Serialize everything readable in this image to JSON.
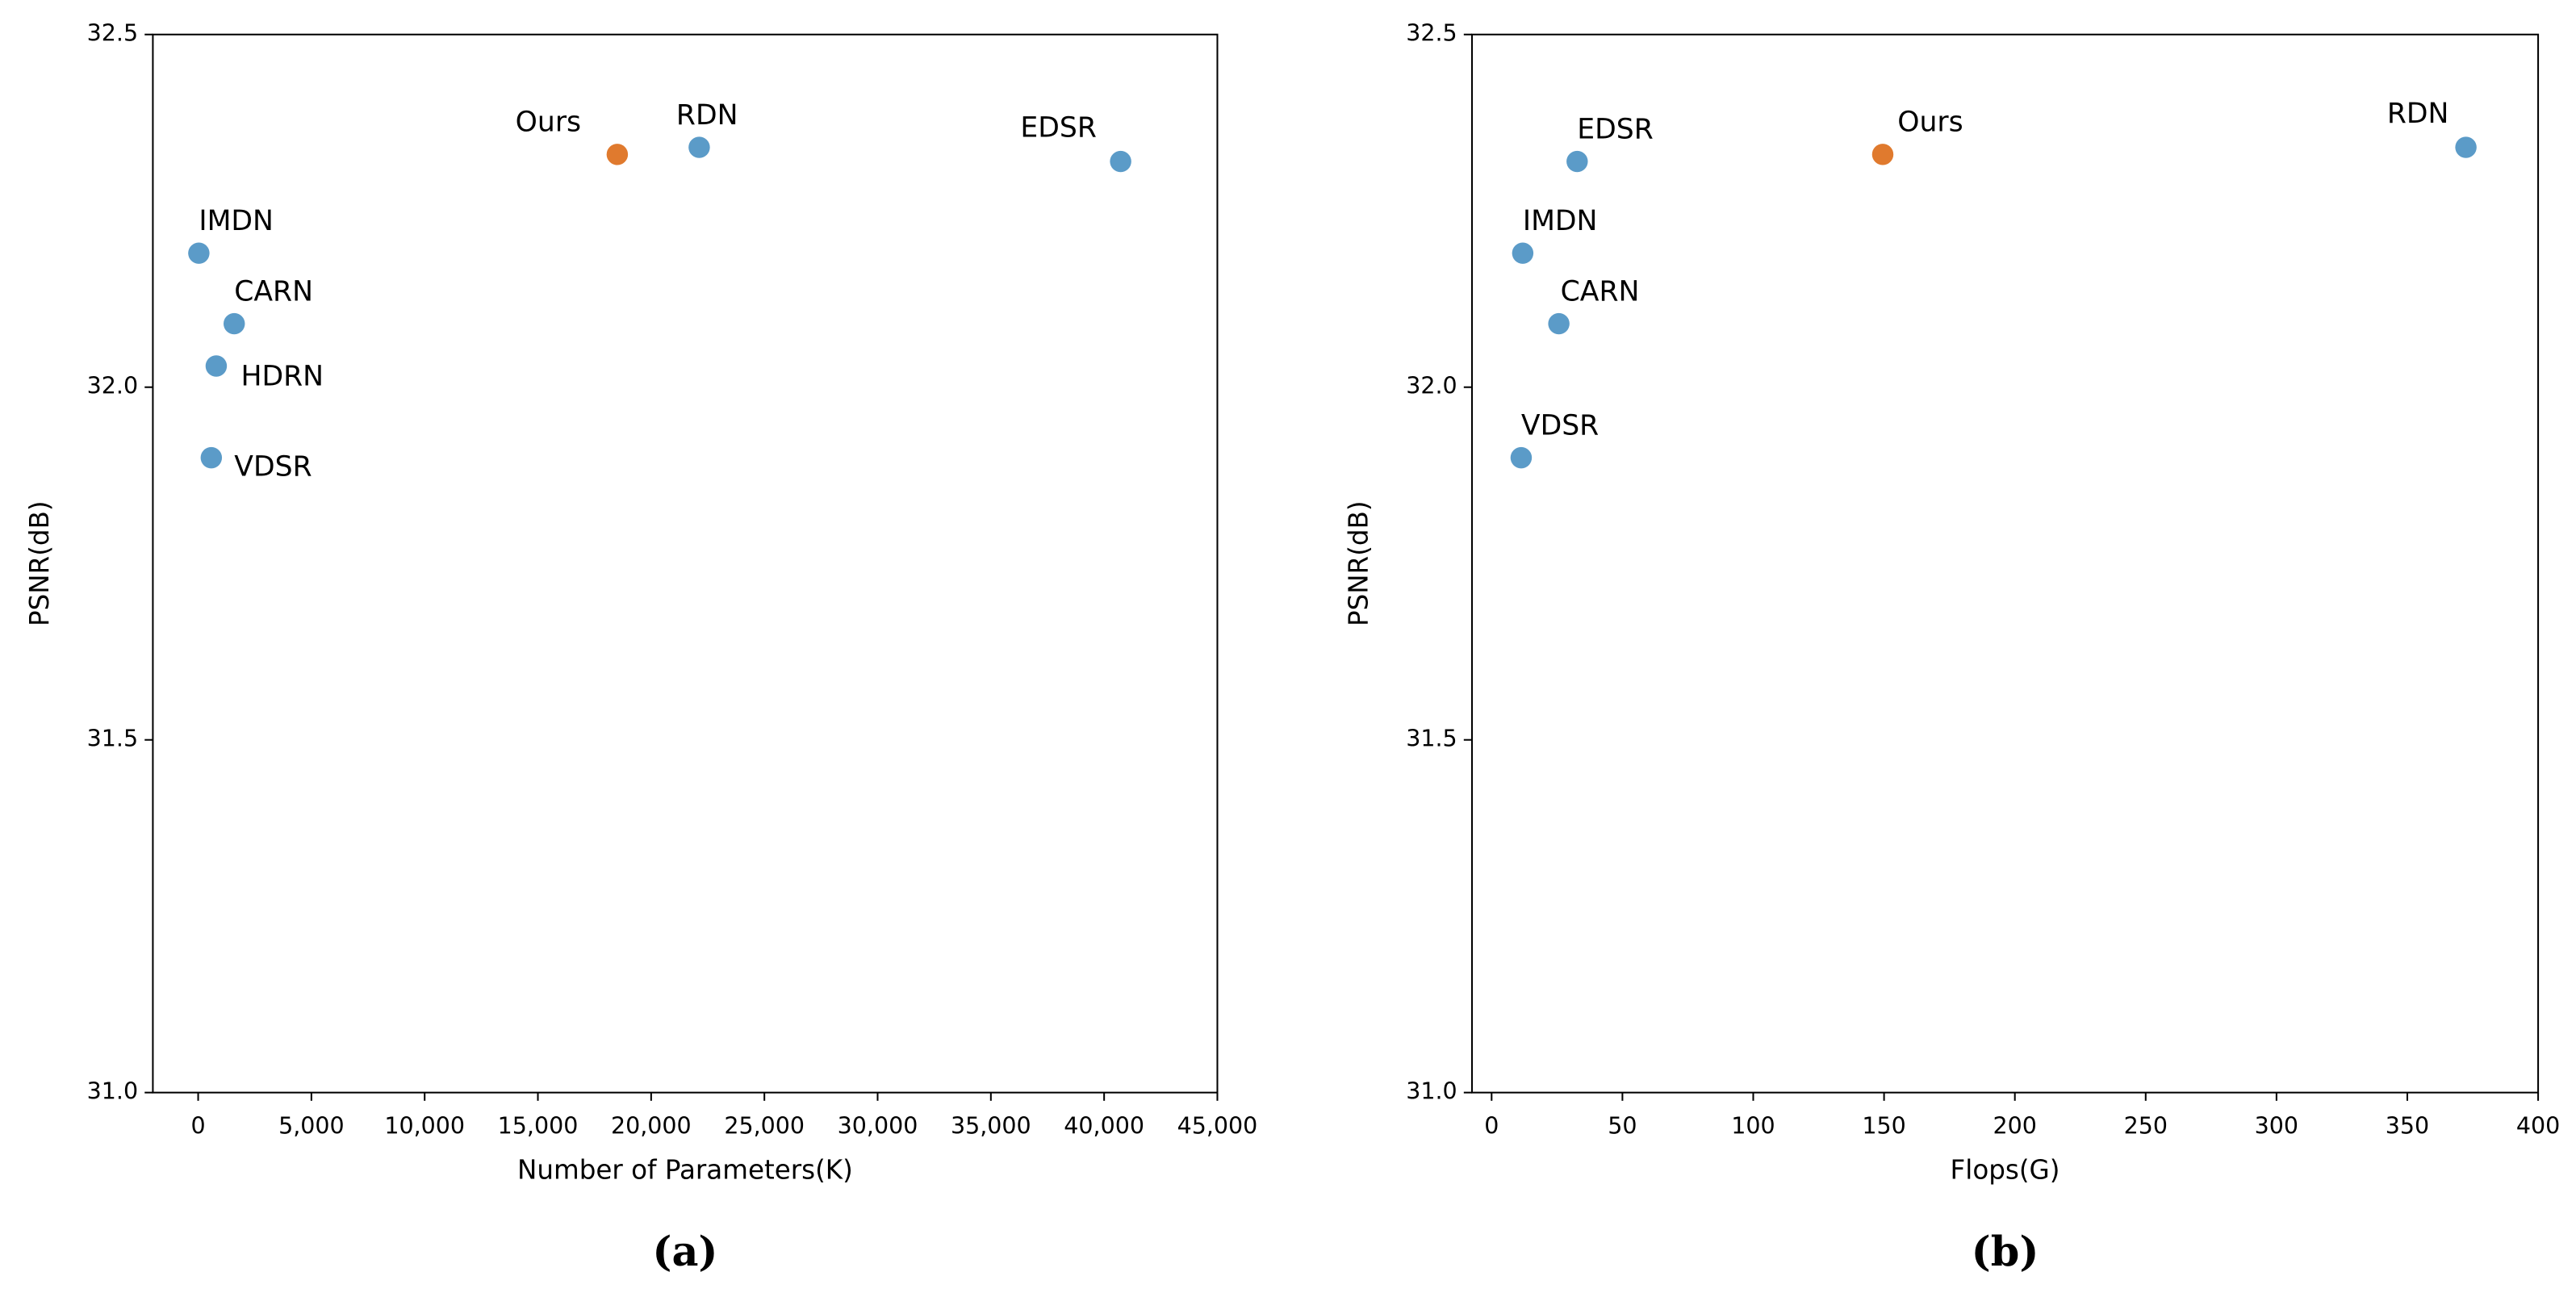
{
  "chart_data": [
    {
      "type": "scatter",
      "caption": "(a)",
      "x_label": "Number of Parameters(K)",
      "y_label": "PSNR(dB)",
      "labels": [
        "IMDN",
        "CARN",
        "HDRN",
        "VDSR",
        "Ours",
        "RDN",
        "EDSR"
      ],
      "x": [
        30,
        1592,
        798,
        580,
        18505,
        22123,
        40729
      ],
      "y": [
        32.19,
        32.09,
        32.03,
        31.9,
        32.33,
        32.34,
        32.32
      ],
      "colors": [
        "#5b9bc8",
        "#5b9bc8",
        "#5b9bc8",
        "#5b9bc8",
        "#e07a2e",
        "#5b9bc8",
        "#5b9bc8"
      ],
      "xlim": [
        -2000,
        45000
      ],
      "xticks": [
        0,
        {
          "value": 5000,
          "label": "5,000"
        },
        {
          "value": 10000,
          "label": "10,000"
        },
        {
          "value": 15000,
          "label": "15,000"
        },
        {
          "value": 20000,
          "label": "20,000"
        },
        {
          "value": 25000,
          "label": "25,000"
        },
        {
          "value": 30000,
          "label": "30,000"
        },
        {
          "value": 35000,
          "label": "35,000"
        },
        {
          "value": 40000,
          "label": "40,000"
        },
        {
          "value": 45000,
          "label": "45,000"
        }
      ],
      "ylim": [
        31.0,
        32.5
      ],
      "yticks": [
        {
          "value": 31,
          "label": "31.0"
        },
        31.5,
        {
          "value": 32,
          "label": "32.0"
        },
        32.5
      ]
    },
    {
      "type": "scatter",
      "caption": "(b)",
      "x_label": "Flops(G)",
      "y_label": "PSNR(dB)",
      "labels": [
        "EDSR",
        "IMDN",
        "CARN",
        "VDSR",
        "Ours",
        "RDN"
      ],
      "x": [
        32.7,
        11.9,
        25.7,
        11.3,
        149.5,
        372.4
      ],
      "y": [
        32.32,
        32.19,
        32.09,
        31.9,
        32.33,
        32.34
      ],
      "colors": [
        "#5b9bc8",
        "#5b9bc8",
        "#5b9bc8",
        "#5b9bc8",
        "#e07a2e",
        "#5b9bc8"
      ],
      "xlim": [
        -7.5,
        400
      ],
      "xticks": [
        0,
        50,
        100,
        150,
        200,
        250,
        300,
        350,
        400
      ],
      "ylim": [
        31.0,
        32.5
      ],
      "yticks": [
        {
          "value": 31,
          "label": "31.0"
        },
        31.5,
        {
          "value": 32,
          "label": "32.0"
        },
        32.5
      ]
    }
  ]
}
